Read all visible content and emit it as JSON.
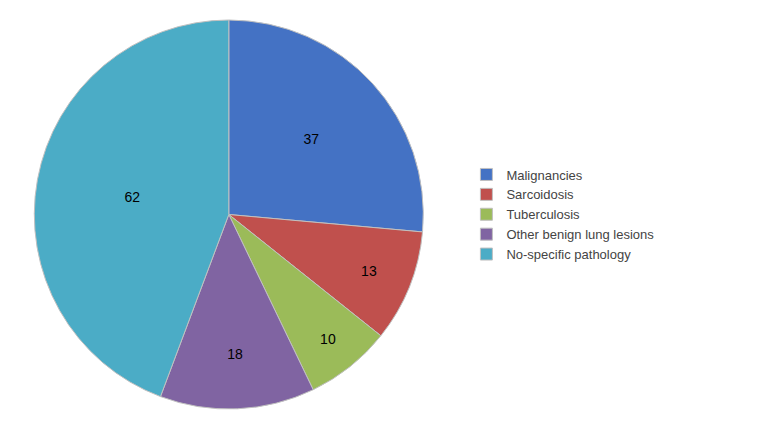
{
  "chart_data": {
    "type": "pie",
    "categories": [
      "Malignancies",
      "Sarcoidosis",
      "Tuberculosis",
      "Other benign lung lesions",
      "No-specific pathology"
    ],
    "values": [
      37,
      13,
      10,
      18,
      62
    ],
    "colors": [
      "#4472C4",
      "#C0504D",
      "#9BBB59",
      "#8064A2",
      "#4BACC6"
    ],
    "data_labels": true,
    "legend": "right"
  }
}
